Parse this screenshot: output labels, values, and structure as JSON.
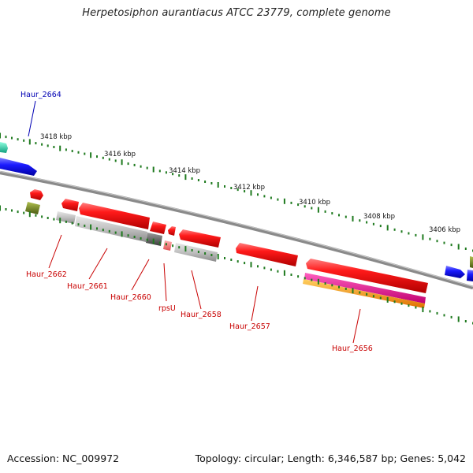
{
  "title": "Herpetosiphon aurantiacus ATCC 23779, complete genome",
  "footer": {
    "accession": "Accession: NC_009972",
    "summary": "Topology: circular; Length: 6,346,587 bp; Genes: 5,042"
  },
  "scale_labels": [
    "3418 kbp",
    "3416 kbp",
    "3414 kbp",
    "3412 kbp",
    "3410 kbp",
    "3408 kbp",
    "3406 kbp"
  ],
  "gene_labels": [
    {
      "id": "haur-2664",
      "text": "Haur_2664",
      "color": "#0000b4"
    },
    {
      "id": "haur-2662",
      "text": "Haur_2662",
      "color": "#c80000"
    },
    {
      "id": "haur-2661",
      "text": "Haur_2661",
      "color": "#c80000"
    },
    {
      "id": "haur-2660",
      "text": "Haur_2660",
      "color": "#c80000"
    },
    {
      "id": "rpsu",
      "text": "rpsU",
      "color": "#c80000"
    },
    {
      "id": "haur-2658",
      "text": "Haur_2658",
      "color": "#c80000"
    },
    {
      "id": "haur-2657",
      "text": "Haur_2657",
      "color": "#c80000"
    },
    {
      "id": "haur-2656",
      "text": "Haur_2656",
      "color": "#c80000"
    }
  ],
  "colors": {
    "backbone": "#8a8a8a",
    "tick": "#1f7a1f",
    "gene_red": "#e00000",
    "gene_blue": "#1a1ae6",
    "gene_gray": "#b5b5b5",
    "gene_olive": "#6b7a1a",
    "gene_teal": "#1fd0a0",
    "gene_magenta": "#e0188c",
    "gene_orange": "#f09000",
    "label_blue": "#0000b4",
    "label_red": "#c80000"
  }
}
